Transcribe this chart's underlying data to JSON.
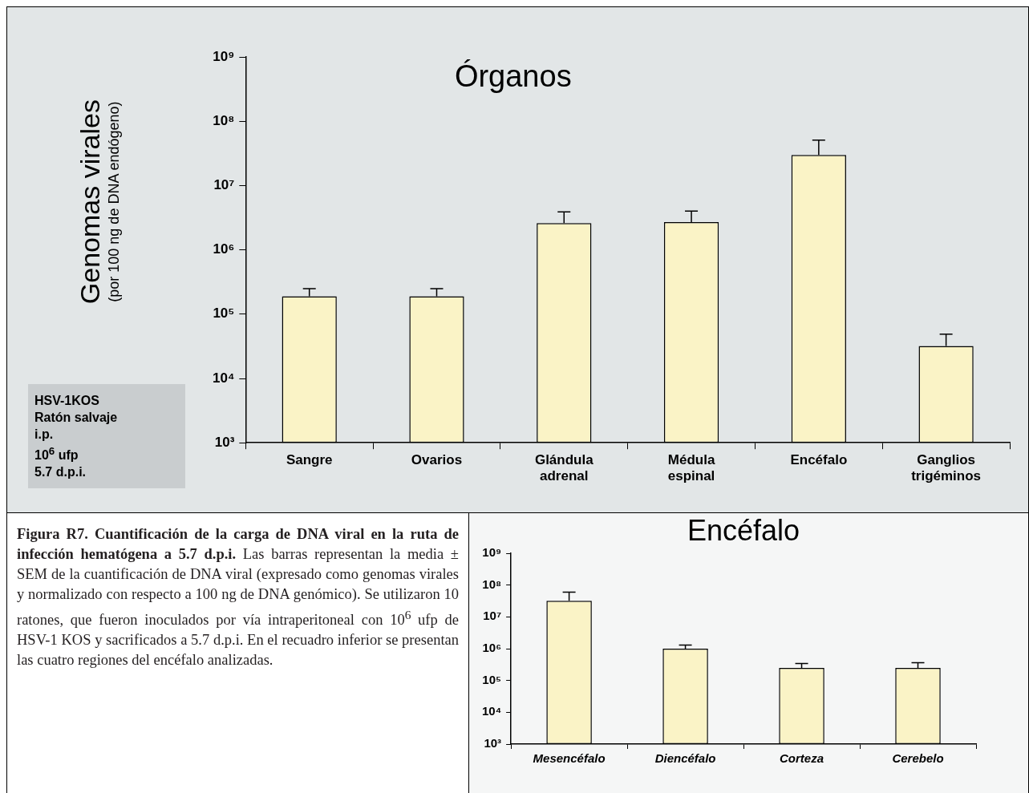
{
  "chart_data": [
    {
      "type": "bar",
      "title": "Órganos",
      "ylabel": "Genomas virales\n(por 100 ng de DNA endógeno)",
      "log": true,
      "grid": false,
      "legend": false,
      "categories": [
        "Sangre",
        "Ovarios",
        "Glándula adrenal",
        "Médula espinal",
        "Encéfalo",
        "Ganglios trigéminos"
      ],
      "values": [
        190000,
        190000,
        2600000,
        2700000,
        30000000,
        32000
      ],
      "errors": [
        [
          190000,
          250000
        ],
        [
          190000,
          250000
        ],
        [
          2600000,
          3900000
        ],
        [
          2700000,
          4000000
        ],
        [
          30000000,
          51000000
        ],
        [
          32000,
          49000
        ]
      ],
      "color": "#faf3c6",
      "ylim": [
        1000,
        1000000000
      ],
      "yticks": [
        {
          "value": 1000,
          "label": "10³"
        },
        {
          "value": 10000,
          "label": "10⁴"
        },
        {
          "value": 100000,
          "label": "10⁵"
        },
        {
          "value": 1000000,
          "label": "10⁶"
        },
        {
          "value": 10000000,
          "label": "10⁷"
        },
        {
          "value": 100000000,
          "label": "10⁸"
        },
        {
          "value": 1000000000,
          "label": "10⁹"
        }
      ],
      "annotations": [
        "HSV-1KOS\nRatón salvaje\ni.p.\n10$^{6}$ ufp\n5.7 d.p.i.",
        "Figura R7. Cuantificación de la carga de DNA viral en la ruta de infección hematógena a 5.7 d.p.i.",
        "Las barras representan la media ± SEM de la cuantificación de DNA viral (expresado como genomas virales y normalizado con respecto a 100 ng de DNA genómico). Se utilizaron 10 ratones, que fueron inoculados por vía intraperitoneal con 10$^{6}$ ufp de HSV-1 KOS y sacrificados a 5.7 d.p.i. En el recuadro inferior se presentan las cuatro regiones del encéfalo analizadas."
      ]
    },
    {
      "type": "bar",
      "title": "Encéfalo",
      "log": true,
      "grid": false,
      "legend": false,
      "categories": [
        "Mesencéfalo",
        "Diencéfalo",
        "Corteza",
        "Cerebelo"
      ],
      "values": [
        32000000,
        1000000,
        250000,
        250000
      ],
      "errors": [
        [
          32000000,
          60000000
        ],
        [
          1000000,
          1300000
        ],
        [
          250000,
          340000
        ],
        [
          250000,
          360000
        ]
      ],
      "color": "#faf3c6",
      "ylim": [
        1000,
        1000000000
      ],
      "yticks": [
        {
          "value": 1000,
          "label": "10³"
        },
        {
          "value": 10000,
          "label": "10⁴"
        },
        {
          "value": 100000,
          "label": "10⁵"
        },
        {
          "value": 1000000,
          "label": "10⁶"
        },
        {
          "value": 10000000,
          "label": "10⁷"
        },
        {
          "value": 100000000,
          "label": "10⁸"
        },
        {
          "value": 1000000000,
          "label": "10⁹"
        }
      ]
    }
  ]
}
